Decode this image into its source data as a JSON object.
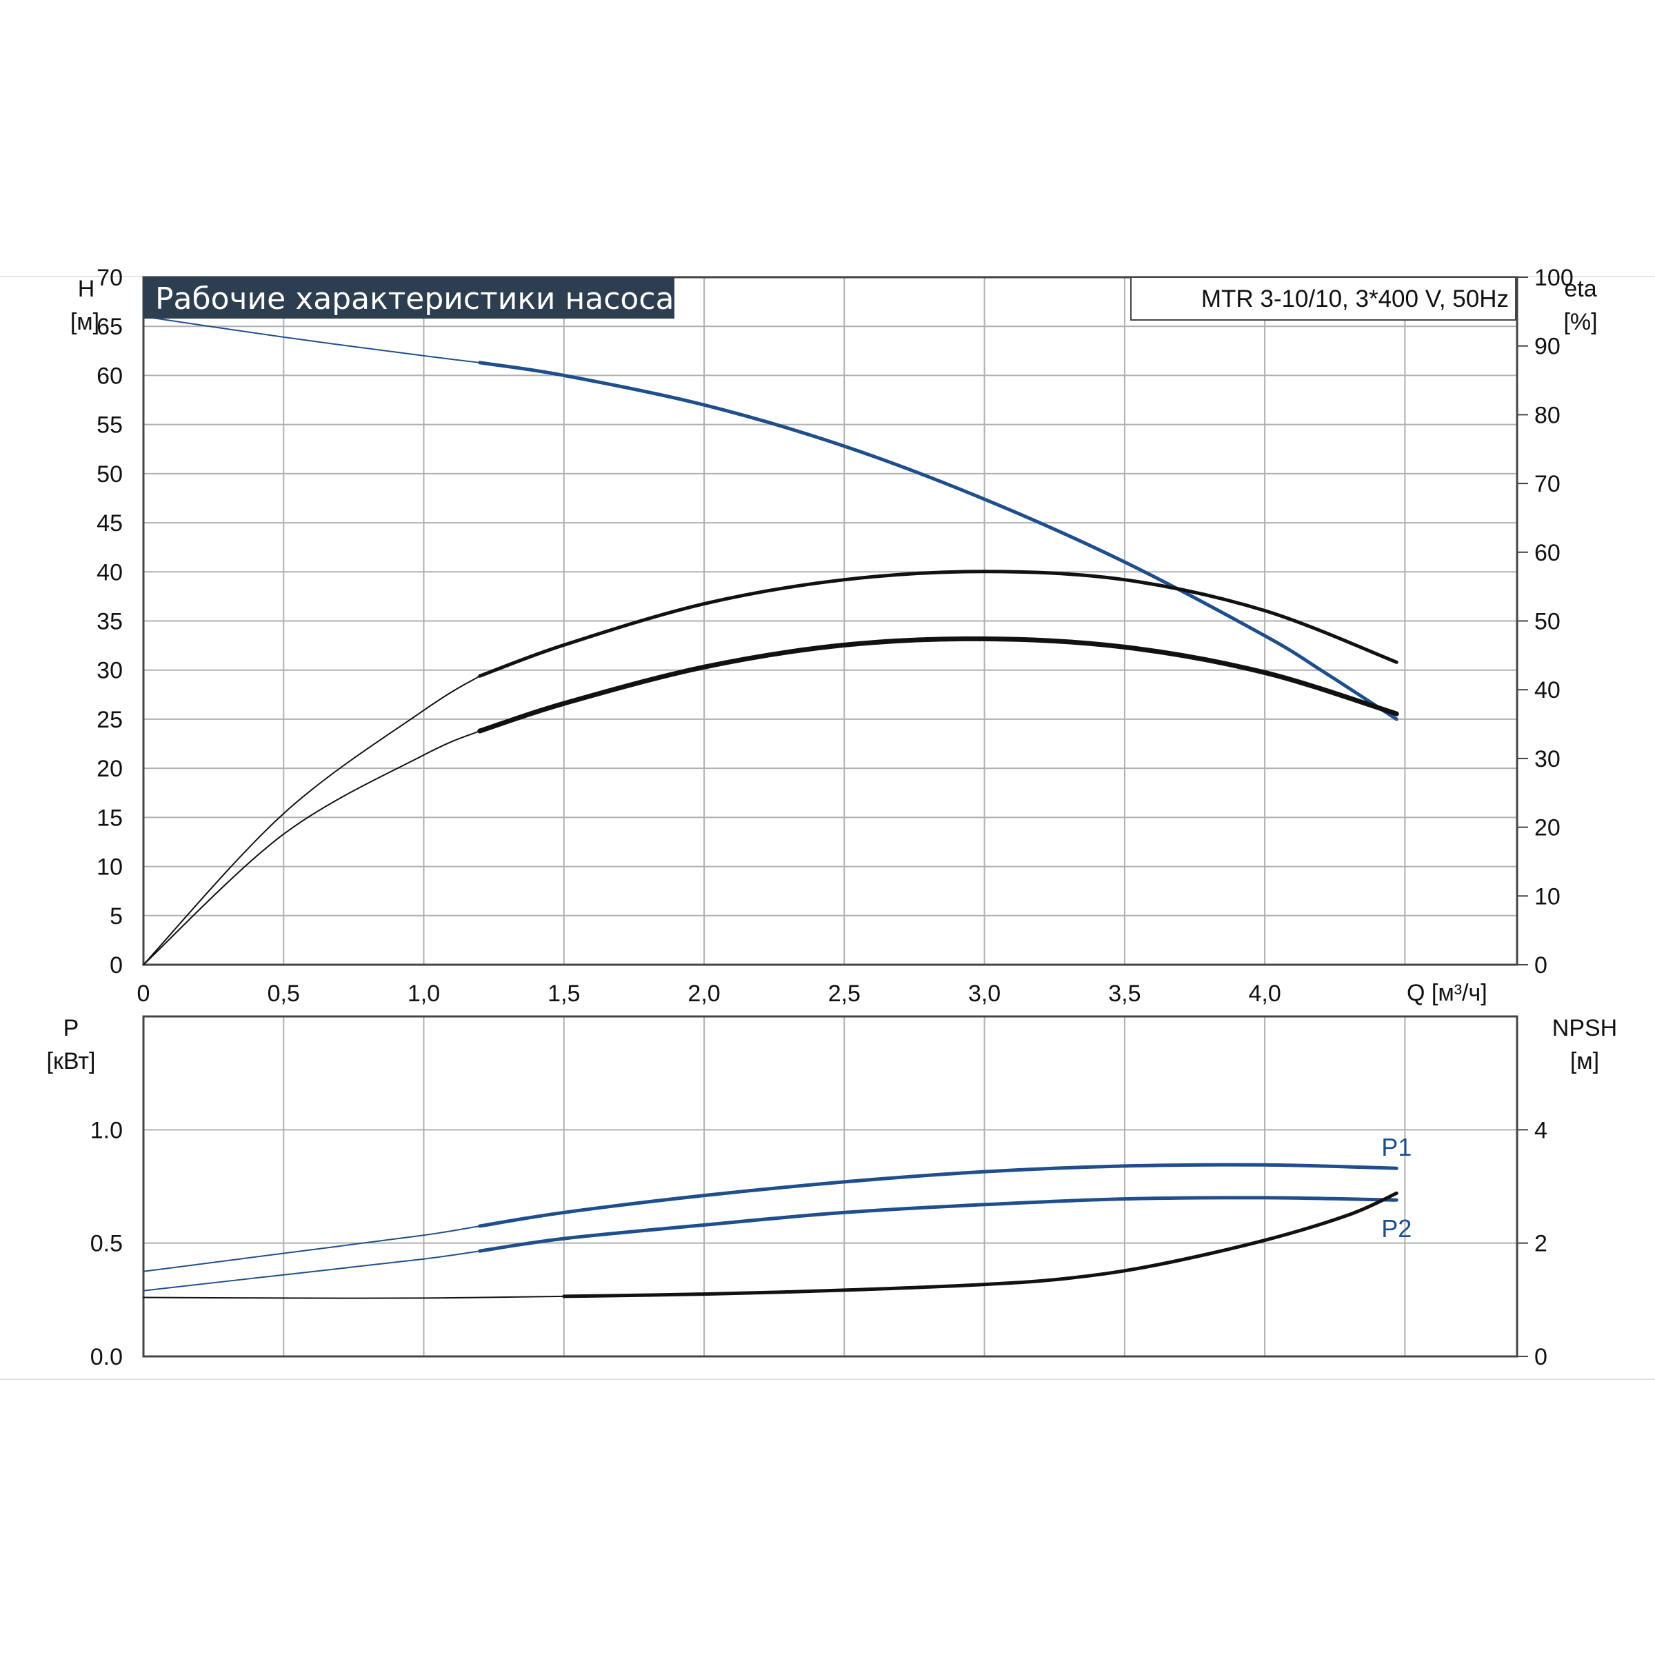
{
  "chart_data": [
    {
      "type": "line",
      "title": "Рабочие характеристики насоса",
      "model": "MTR 3-10/10, 3*400 V, 50Hz",
      "xlabel": "Q [м³/ч]",
      "xlim": [
        0,
        4.9
      ],
      "x_ticks": [
        {
          "value": 0,
          "label": "0"
        },
        {
          "value": 0.5,
          "label": "0,5"
        },
        {
          "value": 1.0,
          "label": "1,0"
        },
        {
          "value": 1.5,
          "label": "1,5"
        },
        {
          "value": 2.0,
          "label": "2,0"
        },
        {
          "value": 2.5,
          "label": "2,5"
        },
        {
          "value": 3.0,
          "label": "3,0"
        },
        {
          "value": 3.5,
          "label": "3,5"
        },
        {
          "value": 4.0,
          "label": "4,0"
        }
      ],
      "y_left": {
        "name": "H",
        "unit": "[м]",
        "lim": [
          0,
          70
        ],
        "ticks": [
          "0",
          "5",
          "10",
          "15",
          "20",
          "25",
          "30",
          "35",
          "40",
          "45",
          "50",
          "55",
          "60",
          "65",
          "70"
        ]
      },
      "y_right": {
        "name": "eta",
        "unit": "[%]",
        "lim": [
          0,
          100
        ],
        "ticks": [
          "0",
          "10",
          "20",
          "30",
          "40",
          "50",
          "60",
          "70",
          "80",
          "90",
          "100"
        ]
      },
      "grid": true,
      "colors": {
        "head": "#1f4e8c",
        "efficiency": "#111111"
      },
      "series": [
        {
          "axis": "left",
          "color": "#1f4e8c",
          "points": [
            [
              0,
              66
            ],
            [
              0.5,
              63.9
            ],
            [
              1.0,
              62
            ],
            [
              1.2,
              61.3
            ],
            [
              1.5,
              60
            ],
            [
              2.0,
              57
            ],
            [
              2.5,
              52.8
            ],
            [
              3.0,
              47.4
            ],
            [
              3.5,
              41
            ],
            [
              4.0,
              33.5
            ],
            [
              4.2,
              30
            ],
            [
              4.47,
              25
            ]
          ]
        },
        {
          "axis": "right",
          "color": "#111111",
          "points": [
            [
              0,
              0
            ],
            [
              0.5,
              22
            ],
            [
              1.0,
              37
            ],
            [
              1.2,
              42
            ],
            [
              1.5,
              46.5
            ],
            [
              2.0,
              52.5
            ],
            [
              2.5,
              56
            ],
            [
              3.0,
              57.2
            ],
            [
              3.5,
              56
            ],
            [
              4.0,
              51.5
            ],
            [
              4.47,
              44
            ]
          ]
        },
        {
          "axis": "right",
          "color": "#111111",
          "points": [
            [
              0,
              0
            ],
            [
              0.5,
              19
            ],
            [
              1.0,
              30.5
            ],
            [
              1.2,
              34
            ],
            [
              1.5,
              38
            ],
            [
              2.0,
              43.3
            ],
            [
              2.5,
              46.5
            ],
            [
              3.0,
              47.4
            ],
            [
              3.5,
              46.2
            ],
            [
              4.0,
              42.5
            ],
            [
              4.47,
              36.5
            ]
          ]
        }
      ]
    },
    {
      "type": "line",
      "xlim": [
        0,
        4.9
      ],
      "y_left": {
        "name": "P",
        "unit": "[кВт]",
        "lim": [
          0,
          1.5
        ],
        "ticks": [
          {
            "value": 0,
            "label": "0.0"
          },
          {
            "value": 0.5,
            "label": "0.5"
          },
          {
            "value": 1.0,
            "label": "1.0"
          }
        ]
      },
      "y_right": {
        "name": "NPSH",
        "unit": "[м]",
        "lim": [
          0,
          6
        ],
        "ticks": [
          {
            "value": 0,
            "label": "0"
          },
          {
            "value": 2,
            "label": "2"
          },
          {
            "value": 4,
            "label": "4"
          }
        ]
      },
      "grid": true,
      "colors": {
        "power": "#1f4e8c",
        "npsh": "#111111"
      },
      "series": [
        {
          "name": "P1",
          "axis": "left",
          "color": "#1f4e8c",
          "points": [
            [
              0,
              0.375
            ],
            [
              0.5,
              0.455
            ],
            [
              1.0,
              0.535
            ],
            [
              1.2,
              0.575
            ],
            [
              1.5,
              0.635
            ],
            [
              2.0,
              0.71
            ],
            [
              2.5,
              0.77
            ],
            [
              3.0,
              0.815
            ],
            [
              3.5,
              0.84
            ],
            [
              4.0,
              0.845
            ],
            [
              4.47,
              0.83
            ]
          ]
        },
        {
          "name": "P2",
          "axis": "left",
          "color": "#1f4e8c",
          "points": [
            [
              0,
              0.29
            ],
            [
              0.5,
              0.36
            ],
            [
              1.0,
              0.43
            ],
            [
              1.2,
              0.465
            ],
            [
              1.5,
              0.52
            ],
            [
              2.0,
              0.58
            ],
            [
              2.5,
              0.635
            ],
            [
              3.0,
              0.67
            ],
            [
              3.5,
              0.695
            ],
            [
              4.0,
              0.7
            ],
            [
              4.47,
              0.69
            ]
          ]
        },
        {
          "axis": "right",
          "color": "#111111",
          "points": [
            [
              0,
              1.04
            ],
            [
              0.5,
              1.03
            ],
            [
              1.0,
              1.03
            ],
            [
              1.5,
              1.06
            ],
            [
              2.0,
              1.1
            ],
            [
              2.5,
              1.17
            ],
            [
              3.0,
              1.27
            ],
            [
              3.3,
              1.38
            ],
            [
              3.6,
              1.6
            ],
            [
              4.0,
              2.05
            ],
            [
              4.3,
              2.5
            ],
            [
              4.47,
              2.88
            ]
          ]
        }
      ]
    }
  ]
}
